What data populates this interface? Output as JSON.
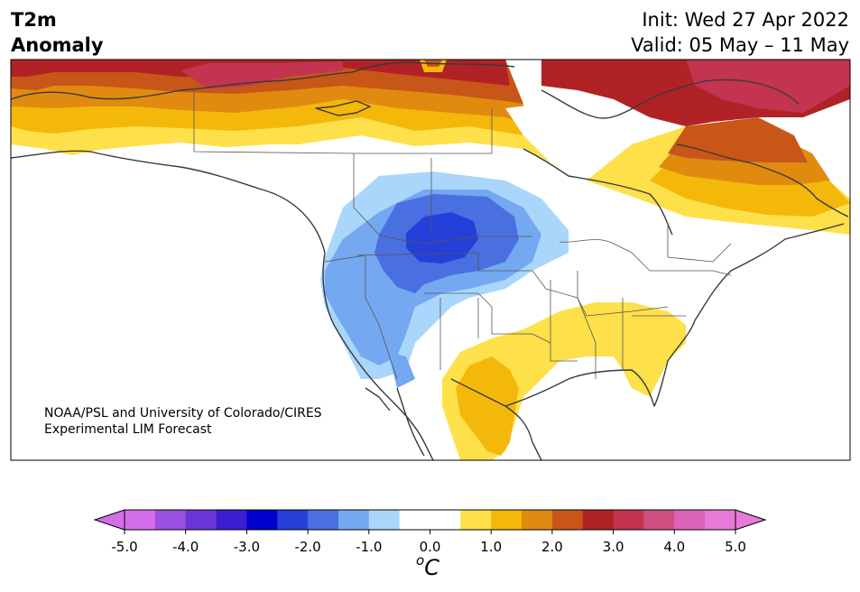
{
  "title": {
    "line1": "T2m",
    "line2": "Anomaly",
    "init": "Init: Wed 27 Apr 2022",
    "valid": "Valid: 05 May – 11 May"
  },
  "credit": {
    "line1": "NOAA/PSL and University of Colorado/CIRES",
    "line2": "Experimental LIM Forecast"
  },
  "colorbar": {
    "unit_sup": "o",
    "unit": "C",
    "ticks": [
      "-5.0",
      "-4.0",
      "-3.0",
      "-2.0",
      "-1.0",
      "0.0",
      "1.0",
      "2.0",
      "3.0",
      "4.0",
      "5.0"
    ],
    "colors": [
      "#d46ee8",
      "#9a4fe0",
      "#6a35d8",
      "#3a1fd0",
      "#0000cc",
      "#2540d8",
      "#4a6fe0",
      "#74a8f0",
      "#aad6fb",
      "#ffffff",
      "#ffffff",
      "#fee04b",
      "#f4b80a",
      "#e08b10",
      "#c85618",
      "#b02225",
      "#c23450",
      "#cf5080",
      "#dc64b8",
      "#e77ad6"
    ],
    "extend_low": "#d46ee8",
    "extend_high": "#e77ad6"
  }
}
